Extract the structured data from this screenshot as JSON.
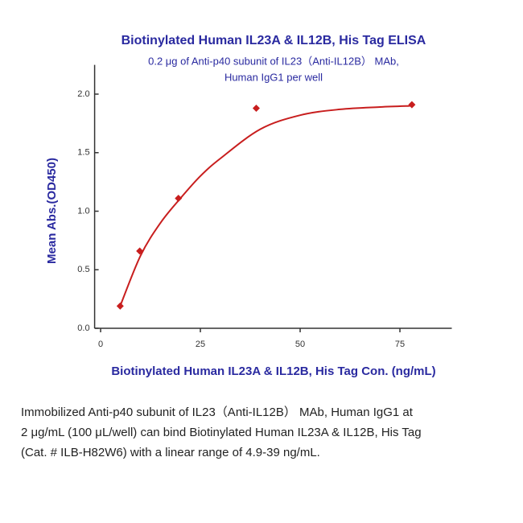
{
  "chart_data": {
    "type": "scatter",
    "title": "Biotinylated Human IL23A & IL12B, His Tag ELISA",
    "subtitle": [
      "0.2 μg of Anti-p40 subunit of IL23（Anti-IL12B） MAb,",
      "Human IgG1 per well"
    ],
    "x_label": "Biotinylated Human IL23A & IL12B, His Tag Con. (ng/mL)",
    "y_label": "Mean Abs.(OD450)",
    "x": [
      4.9,
      9.8,
      19.5,
      39,
      78
    ],
    "values": [
      0.19,
      0.66,
      1.11,
      1.88,
      1.91
    ],
    "color": "#c81e1e",
    "fit": {
      "x": [
        4.9,
        10,
        15,
        20,
        25,
        30,
        40,
        50,
        60,
        70,
        78
      ],
      "values": [
        0.19,
        0.62,
        0.9,
        1.11,
        1.3,
        1.45,
        1.7,
        1.82,
        1.87,
        1.89,
        1.9
      ]
    },
    "xlim": [
      -1.5,
      88
    ],
    "ylim": [
      0,
      2.25
    ],
    "xticks": [
      0,
      25,
      50,
      75
    ],
    "yticks": [
      {
        "value": 0,
        "label": "0.0"
      },
      {
        "value": 0.5,
        "label": "0.5"
      },
      {
        "value": 1,
        "label": "1.0"
      },
      {
        "value": 1.5,
        "label": "1.5"
      },
      {
        "value": 2,
        "label": "2.0"
      }
    ]
  },
  "caption": [
    "Immobilized Anti-p40 subunit of IL23（Anti-IL12B） MAb, Human IgG1 at",
    "2 μg/mL (100 μL/well) can bind Biotinylated Human IL23A & IL12B, His Tag",
    "(Cat. # ILB-H82W6) with a linear range of 4.9-39 ng/mL."
  ]
}
